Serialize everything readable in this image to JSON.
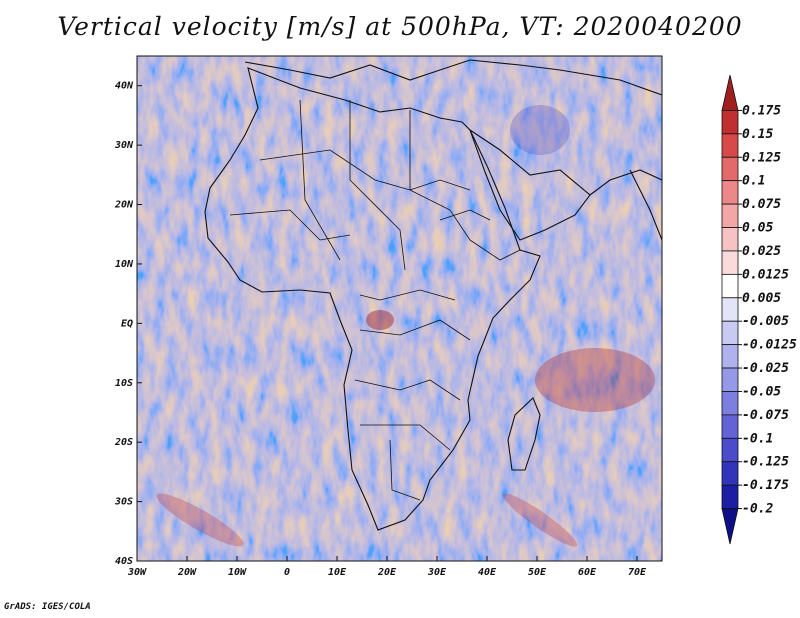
{
  "title": "Vertical velocity [m/s] at 500hPa, VT: 2020040200",
  "credit": "GrADS: IGES/COLA",
  "map": {
    "lon_range": [
      -30,
      75
    ],
    "lat_range": [
      -40,
      45
    ],
    "lon_ticks": [
      "30W",
      "20W",
      "10W",
      "0",
      "10E",
      "20E",
      "30E",
      "40E",
      "50E",
      "60E",
      "70E"
    ],
    "lat_ticks": [
      "40N",
      "30N",
      "20N",
      "10N",
      "EQ",
      "10S",
      "20S",
      "30S",
      "40S"
    ],
    "lon_tick_values": [
      -30,
      -20,
      -10,
      0,
      10,
      20,
      30,
      40,
      50,
      60,
      70
    ],
    "lat_tick_values": [
      40,
      30,
      20,
      10,
      0,
      -10,
      -20,
      -30,
      -40
    ]
  },
  "colorbar": {
    "labels": [
      "0.175",
      "0.15",
      "0.125",
      "0.1",
      "0.075",
      "0.05",
      "0.025",
      "0.0125",
      "0.005",
      "-0.005",
      "-0.0125",
      "-0.025",
      "-0.05",
      "-0.075",
      "-0.1",
      "-0.125",
      "-0.175",
      "-0.2"
    ],
    "colors": [
      "#a01e1e",
      "#c03030",
      "#d84a4a",
      "#e46a6a",
      "#ec8888",
      "#f2a6a6",
      "#f6c2c2",
      "#fadada",
      "#ffffff",
      "#e2e4f8",
      "#c8caf2",
      "#b0b2ee",
      "#9698e8",
      "#7c7ee0",
      "#6264d6",
      "#4a4ccc",
      "#3234bc",
      "#1c1ea4",
      "#0e0e88"
    ]
  }
}
